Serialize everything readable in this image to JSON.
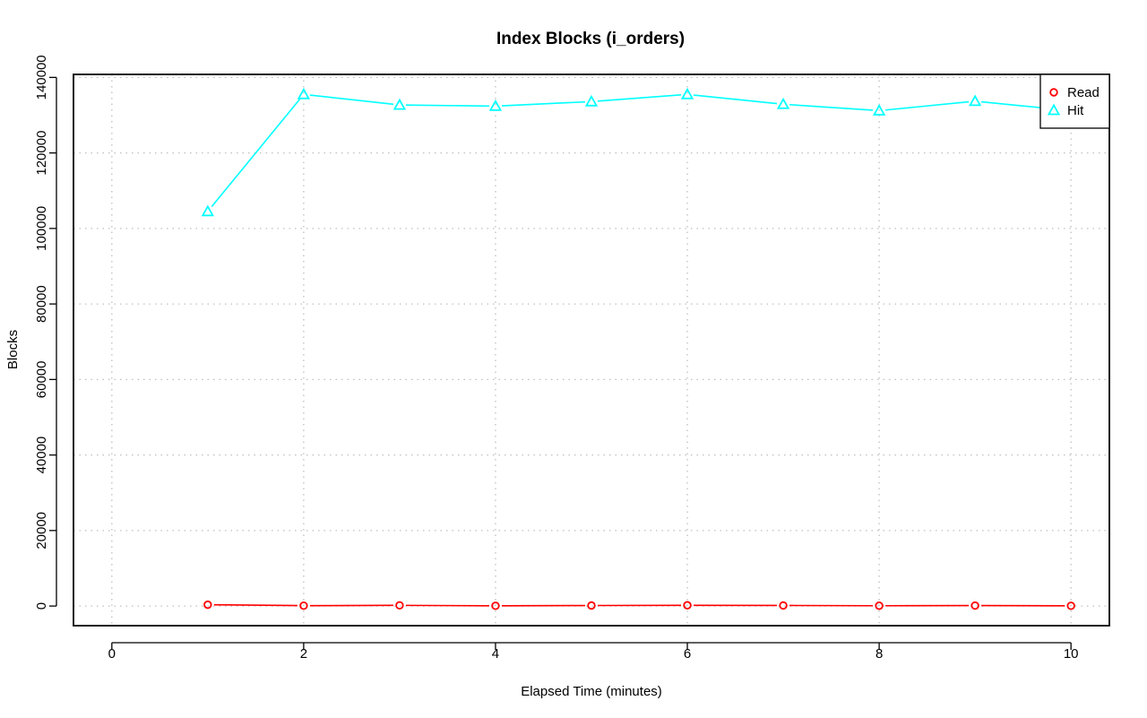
{
  "chart_data": {
    "type": "line",
    "title": "Index Blocks (i_orders)",
    "xlabel": "Elapsed Time (minutes)",
    "ylabel": "Blocks",
    "xlim": [
      -0.4,
      10.4
    ],
    "ylim": [
      -5200,
      140800
    ],
    "x_ticks": [
      0,
      2,
      4,
      6,
      8,
      10
    ],
    "y_ticks": [
      0,
      20000,
      40000,
      60000,
      80000,
      100000,
      120000,
      140000
    ],
    "x_tick_labels": [
      "0",
      "2",
      "4",
      "6",
      "8",
      "10"
    ],
    "y_tick_labels": [
      "0",
      "20000",
      "40000",
      "60000",
      "80000",
      "100000",
      "120000",
      "140000"
    ],
    "grid": true,
    "legend_position": "top-right",
    "x": [
      1,
      2,
      3,
      4,
      5,
      6,
      7,
      8,
      9,
      10
    ],
    "series": [
      {
        "name": "Read",
        "color": "#ff0000",
        "marker": "circle",
        "values": [
          350,
          100,
          180,
          60,
          140,
          200,
          150,
          80,
          120,
          60
        ]
      },
      {
        "name": "Hit",
        "color": "#00ffff",
        "marker": "triangle",
        "values": [
          104500,
          135500,
          132700,
          132400,
          133600,
          135500,
          132900,
          131200,
          133700,
          131200
        ]
      }
    ]
  }
}
